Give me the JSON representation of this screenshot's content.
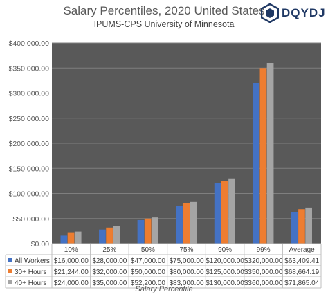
{
  "chart_data": {
    "type": "bar",
    "title": "Salary Percentiles, 2020 United States",
    "subtitle": "IPUMS-CPS University of Minnesota",
    "xlabel": "Salary Percentile",
    "ylabel": "",
    "ylim": [
      0,
      400000
    ],
    "yticks": [
      "$0.00",
      "$50,000.00",
      "$100,000.00",
      "$150,000.00",
      "$200,000.00",
      "$250,000.00",
      "$300,000.00",
      "$350,000.00",
      "$400,000.00"
    ],
    "ytick_values": [
      0,
      50000,
      100000,
      150000,
      200000,
      250000,
      300000,
      350000,
      400000
    ],
    "categories": [
      "10%",
      "25%",
      "50%",
      "75%",
      "90%",
      "99%",
      "Average"
    ],
    "grid": true,
    "legend": "data-table",
    "background": "#595959",
    "series": [
      {
        "name": "All Workers",
        "color": "#4472c4",
        "values": [
          16000,
          28000,
          47000,
          75000,
          120000,
          320000,
          63409.41
        ],
        "labels": [
          "$16,000.00",
          "$28,000.00",
          "$47,000.00",
          "$75,000.00",
          "$120,000.00",
          "$320,000.00",
          "$63,409.41"
        ]
      },
      {
        "name": "30+ Hours",
        "color": "#ed7d31",
        "values": [
          21244,
          32000,
          50000,
          80000,
          125000,
          350000,
          68664.19
        ],
        "labels": [
          "$21,244.00",
          "$32,000.00",
          "$50,000.00",
          "$80,000.00",
          "$125,000.00",
          "$350,000.00",
          "$68,664.19"
        ]
      },
      {
        "name": "40+ Hours",
        "color": "#a5a5a5",
        "values": [
          24000,
          35000,
          52200,
          83000,
          130000,
          360000,
          71865.04
        ],
        "labels": [
          "$24,000.00",
          "$35,000.00",
          "$52,200.00",
          "$83,000.00",
          "$130,000.00",
          "$360,000.00",
          "$71,865.04"
        ]
      }
    ]
  },
  "logo": {
    "text": "DQYDJ",
    "icon": "dqydj-logo-icon"
  }
}
